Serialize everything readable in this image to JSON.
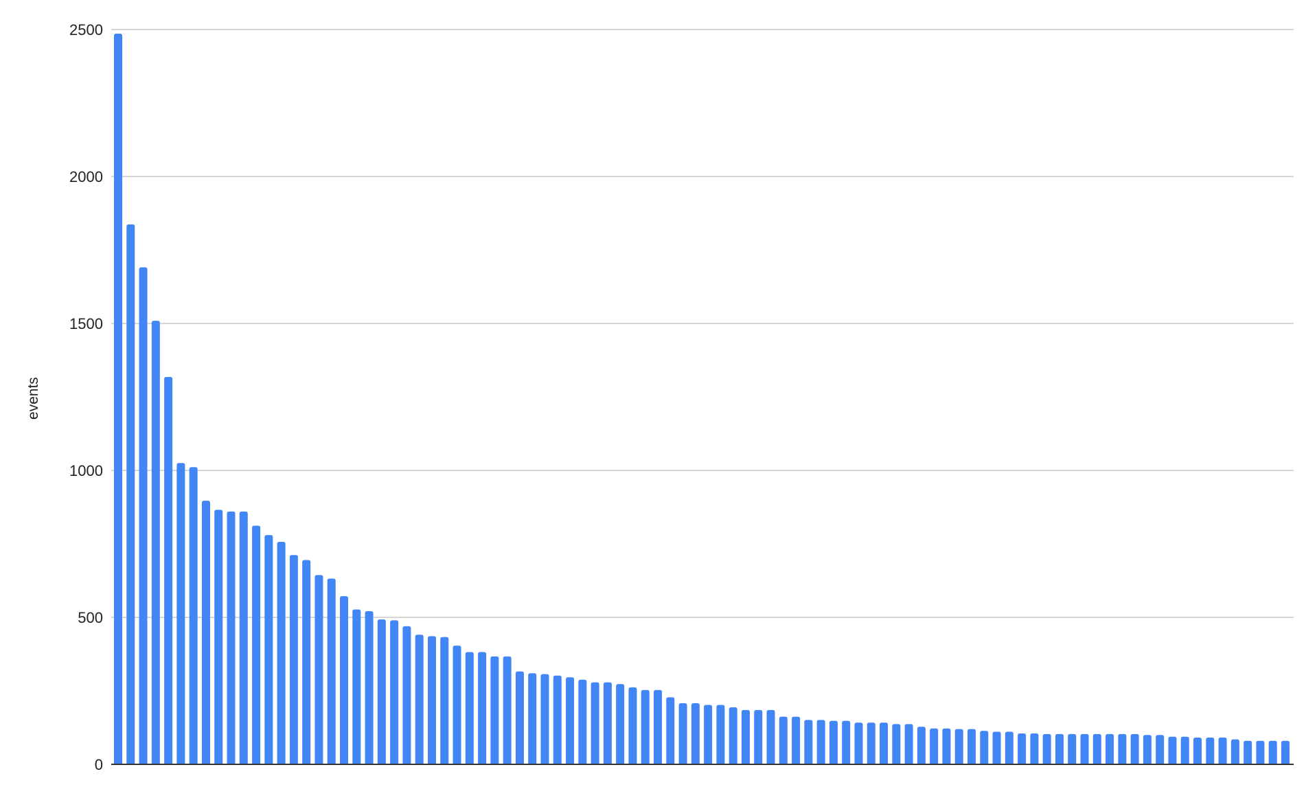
{
  "chart_data": {
    "type": "bar",
    "title": "",
    "xlabel": "",
    "ylabel": "events",
    "ylim": [
      0,
      2500
    ],
    "yticks": [
      "0",
      "500",
      "1000",
      "1500",
      "2000",
      "2500"
    ],
    "grid": true,
    "bar_color": "#4285f4",
    "values": [
      2486,
      1837,
      1691,
      1509,
      1318,
      1025,
      1011,
      897,
      866,
      860,
      860,
      812,
      780,
      757,
      712,
      695,
      644,
      632,
      572,
      527,
      521,
      493,
      490,
      470,
      441,
      436,
      433,
      404,
      382,
      382,
      367,
      367,
      316,
      310,
      307,
      302,
      296,
      288,
      279,
      279,
      273,
      262,
      253,
      253,
      228,
      208,
      208,
      202,
      202,
      194,
      185,
      185,
      185,
      162,
      162,
      151,
      151,
      148,
      148,
      142,
      142,
      142,
      137,
      137,
      128,
      122,
      122,
      120,
      120,
      114,
      111,
      111,
      105,
      105,
      103,
      103,
      103,
      103,
      103,
      103,
      103,
      103,
      100,
      100,
      94,
      94,
      91,
      91,
      91,
      85,
      80,
      80,
      80,
      80
    ]
  }
}
